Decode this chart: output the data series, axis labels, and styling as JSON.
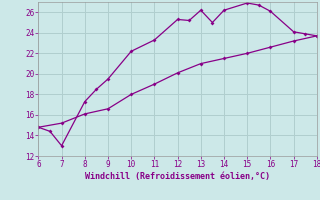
{
  "xlabel": "Windchill (Refroidissement éolien,°C)",
  "xlim": [
    6,
    18
  ],
  "ylim": [
    12,
    27
  ],
  "xticks": [
    6,
    7,
    8,
    9,
    10,
    11,
    12,
    13,
    14,
    15,
    16,
    17,
    18
  ],
  "yticks": [
    12,
    14,
    16,
    18,
    20,
    22,
    24,
    26
  ],
  "background_color": "#cce8e8",
  "grid_color": "#b0cece",
  "line_color": "#880088",
  "line1_x": [
    6,
    6.5,
    7,
    8,
    8.5,
    9,
    10,
    11,
    12,
    12.5,
    13,
    13.5,
    14,
    15,
    15.5,
    16,
    17,
    17.5,
    18
  ],
  "line1_y": [
    14.8,
    14.4,
    13.0,
    17.3,
    18.5,
    19.5,
    22.2,
    23.3,
    25.3,
    25.2,
    26.2,
    25.0,
    26.2,
    26.9,
    26.7,
    26.1,
    24.1,
    23.9,
    23.7
  ],
  "line2_x": [
    6,
    7,
    8,
    9,
    10,
    11,
    12,
    13,
    14,
    15,
    16,
    17,
    18
  ],
  "line2_y": [
    14.8,
    15.2,
    16.1,
    16.6,
    18.0,
    19.0,
    20.1,
    21.0,
    21.5,
    22.0,
    22.6,
    23.2,
    23.7
  ]
}
